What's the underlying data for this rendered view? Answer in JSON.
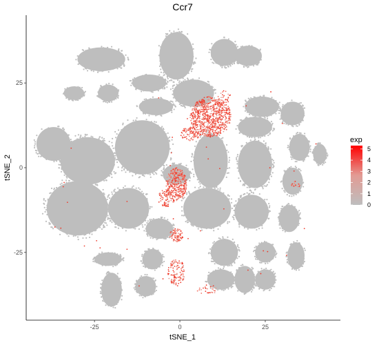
{
  "chart_data": {
    "type": "scatter",
    "title": "Ccr7",
    "xlabel": "tSNE_1",
    "ylabel": "tSNE_2",
    "xlim": [
      -45,
      47
    ],
    "ylim": [
      -45,
      45
    ],
    "x_ticks": [
      -25,
      0,
      25
    ],
    "y_ticks": [
      -25,
      0,
      25
    ],
    "grid": false,
    "legend": {
      "title": "exp",
      "position": "right",
      "ticks": [
        0,
        1,
        2,
        3,
        4,
        5
      ],
      "range": [
        0,
        5.3
      ],
      "color_low": "#bebebe",
      "color_high": "#ff0000"
    },
    "point_color": "#bebebe",
    "highlight_color": "#ef3b2c",
    "clusters_grey": [
      {
        "cx": -23,
        "cy": 32,
        "rx": 7,
        "ry": 3.5
      },
      {
        "cx": -1,
        "cy": 33,
        "rx": 5,
        "ry": 7
      },
      {
        "cx": 13,
        "cy": 34,
        "rx": 4,
        "ry": 4
      },
      {
        "cx": 20,
        "cy": 33,
        "rx": 4,
        "ry": 3
      },
      {
        "cx": -9,
        "cy": 25,
        "rx": 5,
        "ry": 2.5
      },
      {
        "cx": -21,
        "cy": 22,
        "rx": 3,
        "ry": 2.5
      },
      {
        "cx": -31,
        "cy": 22,
        "rx": 3,
        "ry": 2
      },
      {
        "cx": 4,
        "cy": 22,
        "rx": 6,
        "ry": 4
      },
      {
        "cx": 24,
        "cy": 18,
        "rx": 5,
        "ry": 3
      },
      {
        "cx": 33,
        "cy": 16,
        "rx": 3.5,
        "ry": 3.5
      },
      {
        "cx": -7,
        "cy": 18,
        "rx": 5,
        "ry": 2.5
      },
      {
        "cx": 22,
        "cy": 12,
        "rx": 5,
        "ry": 3
      },
      {
        "cx": 35,
        "cy": 6,
        "rx": 3,
        "ry": 4
      },
      {
        "cx": 22,
        "cy": 1,
        "rx": 5,
        "ry": 7
      },
      {
        "cx": 41,
        "cy": 4,
        "rx": 2,
        "ry": 3
      },
      {
        "cx": 33,
        "cy": -4,
        "rx": 3,
        "ry": 4
      },
      {
        "cx": -37,
        "cy": 7,
        "rx": 5,
        "ry": 5
      },
      {
        "cx": -27,
        "cy": 2,
        "rx": 8,
        "ry": 7
      },
      {
        "cx": -11,
        "cy": 6,
        "rx": 8,
        "ry": 8
      },
      {
        "cx": -1,
        "cy": -2,
        "rx": 4,
        "ry": 3
      },
      {
        "cx": 9,
        "cy": 2,
        "rx": 5,
        "ry": 8
      },
      {
        "cx": -30,
        "cy": -12,
        "rx": 9,
        "ry": 8
      },
      {
        "cx": -15,
        "cy": -12,
        "rx": 6,
        "ry": 6
      },
      {
        "cx": 8,
        "cy": -12,
        "rx": 7,
        "ry": 6
      },
      {
        "cx": 21,
        "cy": -13,
        "rx": 5,
        "ry": 5
      },
      {
        "cx": 32,
        "cy": -15,
        "rx": 3,
        "ry": 4
      },
      {
        "cx": -6,
        "cy": -18,
        "rx": 4,
        "ry": 3
      },
      {
        "cx": -21,
        "cy": -27,
        "rx": 4,
        "ry": 2
      },
      {
        "cx": -8,
        "cy": -27,
        "rx": 3,
        "ry": 3
      },
      {
        "cx": 13,
        "cy": -25,
        "rx": 4,
        "ry": 4
      },
      {
        "cx": 25,
        "cy": -25,
        "rx": 3,
        "ry": 3
      },
      {
        "cx": 34,
        "cy": -26,
        "rx": 2.5,
        "ry": 4
      },
      {
        "cx": -20,
        "cy": -36,
        "rx": 3,
        "ry": 5
      },
      {
        "cx": -10,
        "cy": -35,
        "rx": 3,
        "ry": 3
      },
      {
        "cx": 12,
        "cy": -33,
        "rx": 4,
        "ry": 3
      },
      {
        "cx": 19,
        "cy": -33,
        "rx": 3,
        "ry": 4
      },
      {
        "cx": 25,
        "cy": -33,
        "rx": 3,
        "ry": 3
      }
    ],
    "clusters_expressing": [
      {
        "cx": 9,
        "cy": 15,
        "rx": 6,
        "ry": 6,
        "density": 0.55
      },
      {
        "cx": 3,
        "cy": 10,
        "rx": 3,
        "ry": 2,
        "density": 0.4
      },
      {
        "cx": -1,
        "cy": -5,
        "rx": 3,
        "ry": 5,
        "density": 0.6
      },
      {
        "cx": -4,
        "cy": -9,
        "rx": 2.5,
        "ry": 2.5,
        "density": 0.35
      },
      {
        "cx": -1,
        "cy": -20,
        "rx": 2,
        "ry": 2,
        "density": 0.5
      },
      {
        "cx": -1,
        "cy": -31,
        "rx": 2.5,
        "ry": 4,
        "density": 0.3
      },
      {
        "cx": 13,
        "cy": 21,
        "rx": 2,
        "ry": 2,
        "density": 0.15
      },
      {
        "cx": 34,
        "cy": -5,
        "rx": 1.5,
        "ry": 1,
        "density": 0.3
      },
      {
        "cx": 8,
        "cy": -36,
        "rx": 3,
        "ry": 1.5,
        "density": 0.15
      }
    ]
  }
}
